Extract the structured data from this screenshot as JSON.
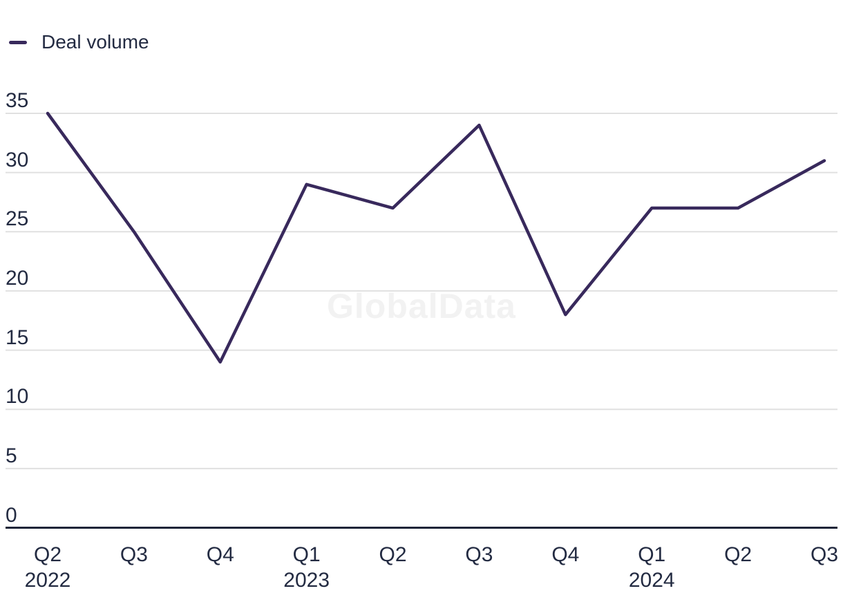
{
  "legend": {
    "items": [
      {
        "label": "Deal volume",
        "color": "#38295c"
      }
    ]
  },
  "watermark": "GlobalData",
  "chart_data": {
    "type": "line",
    "title": "",
    "xlabel": "",
    "ylabel": "",
    "categories": [
      "Q2",
      "Q3",
      "Q4",
      "Q1",
      "Q2",
      "Q3",
      "Q4",
      "Q1",
      "Q2",
      "Q3"
    ],
    "category_years": [
      "2022",
      "",
      "",
      "2023",
      "",
      "",
      "",
      "2024",
      "",
      ""
    ],
    "series": [
      {
        "name": "Deal volume",
        "color": "#38295c",
        "values": [
          35,
          25,
          14,
          29,
          27,
          34,
          18,
          27,
          27,
          31
        ]
      }
    ],
    "yticks": [
      0,
      5,
      10,
      15,
      20,
      25,
      30,
      35
    ],
    "ylim": [
      0,
      35
    ],
    "grid": "horizontal",
    "legend_position": "top-left"
  },
  "colors": {
    "line": "#38295c",
    "grid": "#e0e0e0",
    "axis": "#1c2438",
    "text": "#232b42",
    "watermark": "#f2f2f2",
    "background": "#ffffff"
  }
}
